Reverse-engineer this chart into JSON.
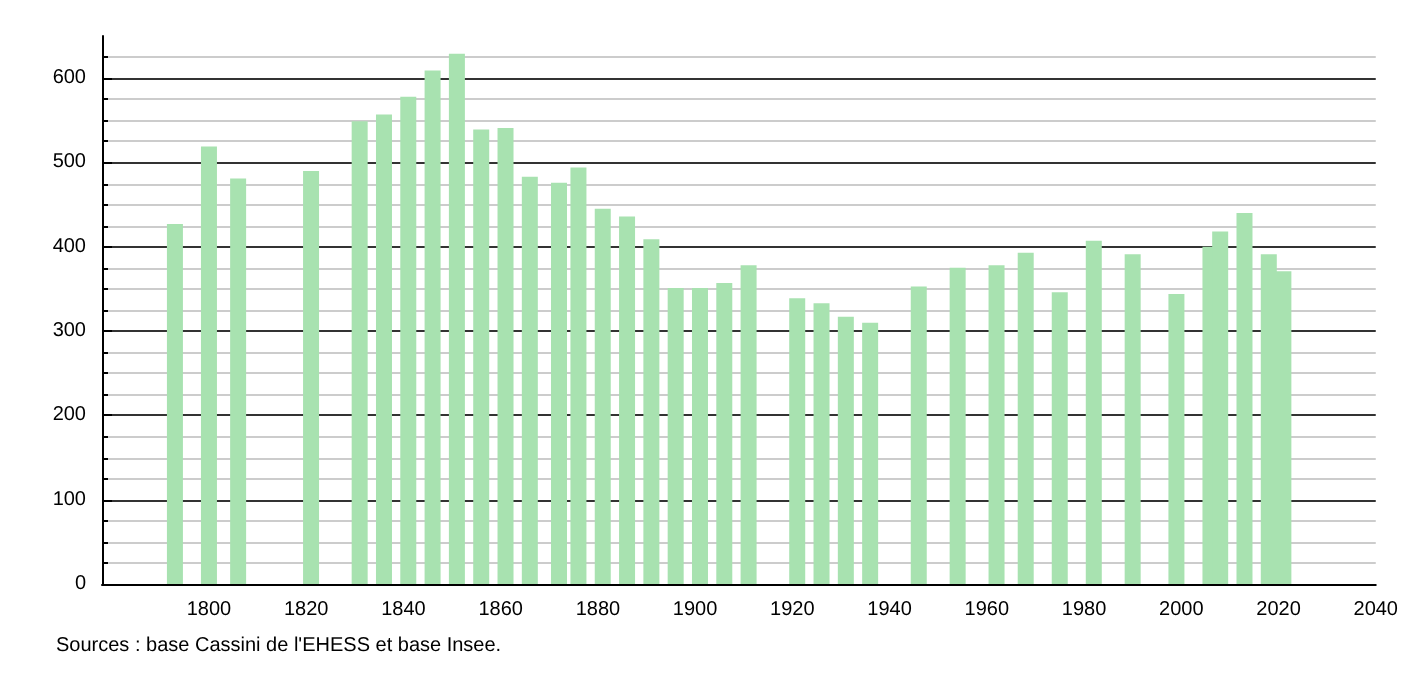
{
  "chart_data": {
    "type": "bar",
    "x": [
      1793,
      1800,
      1806,
      1821,
      1831,
      1836,
      1841,
      1846,
      1851,
      1856,
      1861,
      1866,
      1872,
      1876,
      1881,
      1886,
      1891,
      1896,
      1901,
      1906,
      1911,
      1921,
      1926,
      1931,
      1936,
      1946,
      1954,
      1962,
      1968,
      1975,
      1982,
      1990,
      1999,
      2006,
      2008,
      2013,
      2018,
      2021
    ],
    "values": [
      427,
      519,
      481,
      490,
      549,
      557,
      578,
      609,
      629,
      539,
      541,
      483,
      476,
      494,
      445,
      436,
      409,
      351,
      351,
      357,
      378,
      339,
      333,
      317,
      310,
      353,
      375,
      378,
      393,
      346,
      407,
      391,
      344,
      400,
      418,
      440,
      391,
      371
    ],
    "color": "#a8e2b0",
    "xlim": [
      1778,
      2040
    ],
    "xticks": [
      1800,
      1820,
      1840,
      1860,
      1880,
      1900,
      1920,
      1940,
      1960,
      1980,
      2000,
      2020,
      2040
    ],
    "ylim": [
      0,
      650
    ],
    "yticks": [
      0,
      100,
      200,
      300,
      400,
      500,
      600
    ],
    "grid": "y",
    "annotations": [
      "Sources : base Cassini de l'EHESS et base Insee."
    ]
  }
}
